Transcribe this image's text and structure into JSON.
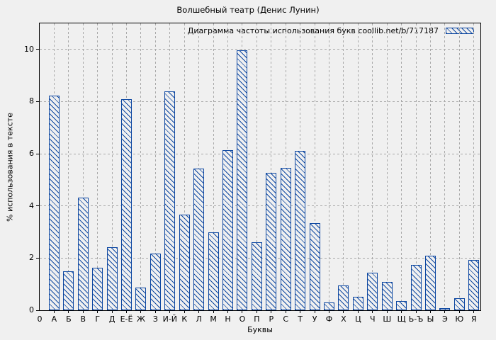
{
  "chart_data": {
    "type": "bar",
    "title": "Волшебный театр (Денис Лунин)",
    "legend": "Диаграмма частоты использования букв coollib.net/b/717187",
    "legend_position": "top-right",
    "xlabel": "Буквы",
    "ylabel": "% использования в тексте",
    "x_origin_label": "0",
    "categories": [
      "А",
      "Б",
      "В",
      "Г",
      "Д",
      "Е-Ё",
      "Ж",
      "З",
      "И-Й",
      "К",
      "Л",
      "М",
      "Н",
      "О",
      "П",
      "Р",
      "С",
      "Т",
      "У",
      "Ф",
      "Х",
      "Ц",
      "Ч",
      "Ш",
      "Щ",
      "Ь-Ъ",
      "Ы",
      "Э",
      "Ю",
      "Я"
    ],
    "values": [
      8.22,
      1.5,
      4.33,
      1.62,
      2.42,
      8.09,
      0.87,
      2.17,
      8.39,
      3.66,
      5.42,
      2.98,
      6.13,
      9.96,
      2.62,
      5.26,
      5.46,
      6.1,
      3.34,
      0.29,
      0.96,
      0.51,
      1.43,
      1.09,
      0.34,
      1.73,
      2.1,
      0.07,
      0.46,
      1.92
    ],
    "yticks": [
      0,
      2,
      4,
      6,
      8,
      10
    ],
    "ylim": [
      0,
      11
    ],
    "grid": true,
    "hatch": "diagonal-backslash",
    "colors": {
      "bar": "#0d47a1",
      "grid": "#a9a9a9",
      "background": "#f0f0f0",
      "axis": "#000000",
      "text": "#000000"
    }
  }
}
